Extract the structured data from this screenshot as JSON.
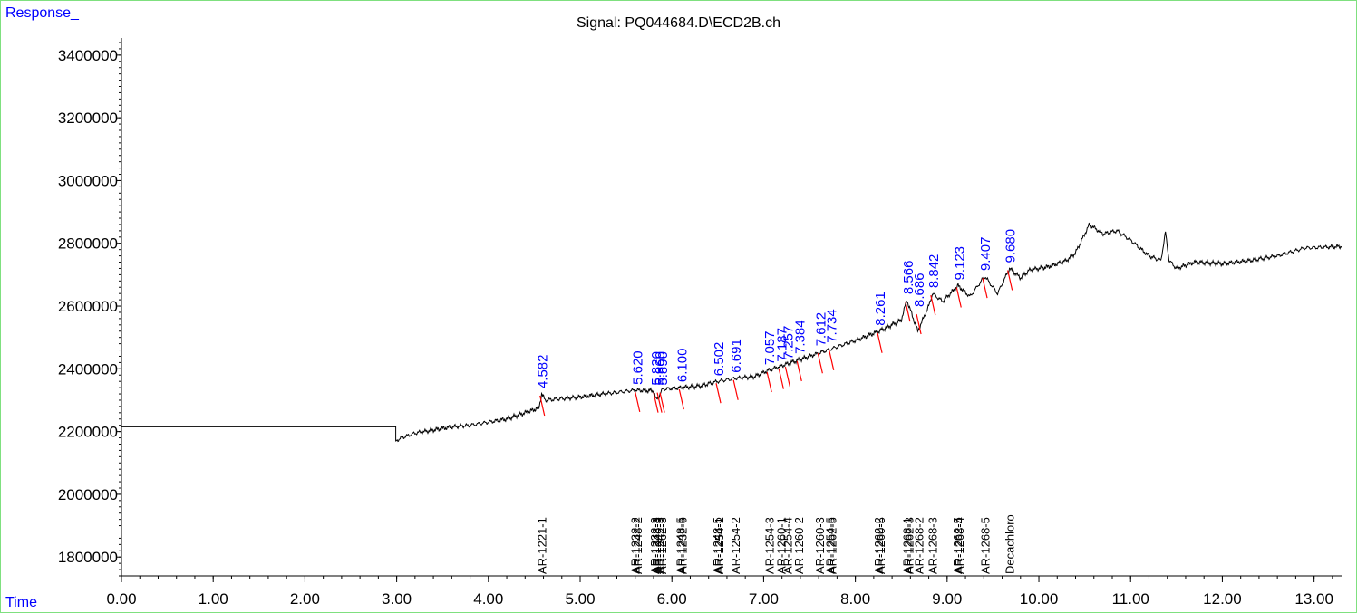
{
  "chart_data": {
    "type": "line",
    "title": "Signal: PQ044684.D\\ECD2B.ch",
    "ylabel": "Response_",
    "xlabel": "Time",
    "xlim": [
      0,
      13.3
    ],
    "ylim": [
      1740000,
      3440000
    ],
    "x_ticks": [
      "0.00",
      "1.00",
      "2.00",
      "3.00",
      "4.00",
      "5.00",
      "6.00",
      "7.00",
      "8.00",
      "9.00",
      "10.00",
      "11.00",
      "12.00",
      "13.00"
    ],
    "y_ticks": [
      "1800000",
      "2000000",
      "2200000",
      "2400000",
      "2600000",
      "2800000",
      "3000000",
      "3200000",
      "3400000"
    ],
    "series": [
      {
        "trace": [
          [
            0.0,
            2215000
          ],
          [
            2.99,
            2215000
          ],
          [
            2.99,
            2170000
          ],
          [
            3.05,
            2180000
          ],
          [
            3.2,
            2195000
          ],
          [
            3.4,
            2205000
          ],
          [
            3.6,
            2215000
          ],
          [
            3.8,
            2220000
          ],
          [
            4.0,
            2230000
          ],
          [
            4.2,
            2240000
          ],
          [
            4.4,
            2260000
          ],
          [
            4.55,
            2275000
          ],
          [
            4.58,
            2320000
          ],
          [
            4.62,
            2300000
          ],
          [
            4.8,
            2305000
          ],
          [
            5.0,
            2310000
          ],
          [
            5.2,
            2318000
          ],
          [
            5.4,
            2325000
          ],
          [
            5.6,
            2332000
          ],
          [
            5.8,
            2330000
          ],
          [
            5.83,
            2300000
          ],
          [
            5.9,
            2335000
          ],
          [
            6.1,
            2340000
          ],
          [
            6.3,
            2345000
          ],
          [
            6.5,
            2360000
          ],
          [
            6.7,
            2370000
          ],
          [
            6.9,
            2375000
          ],
          [
            7.05,
            2395000
          ],
          [
            7.2,
            2410000
          ],
          [
            7.4,
            2430000
          ],
          [
            7.6,
            2450000
          ],
          [
            7.8,
            2470000
          ],
          [
            8.0,
            2490000
          ],
          [
            8.26,
            2520000
          ],
          [
            8.5,
            2555000
          ],
          [
            8.56,
            2620000
          ],
          [
            8.68,
            2520000
          ],
          [
            8.8,
            2600000
          ],
          [
            8.84,
            2640000
          ],
          [
            8.95,
            2615000
          ],
          [
            9.12,
            2665000
          ],
          [
            9.25,
            2630000
          ],
          [
            9.41,
            2695000
          ],
          [
            9.55,
            2640000
          ],
          [
            9.68,
            2720000
          ],
          [
            9.8,
            2690000
          ],
          [
            9.9,
            2715000
          ],
          [
            10.1,
            2725000
          ],
          [
            10.3,
            2745000
          ],
          [
            10.4,
            2770000
          ],
          [
            10.55,
            2860000
          ],
          [
            10.7,
            2830000
          ],
          [
            10.85,
            2840000
          ],
          [
            11.0,
            2810000
          ],
          [
            11.2,
            2760000
          ],
          [
            11.33,
            2745000
          ],
          [
            11.38,
            2835000
          ],
          [
            11.42,
            2745000
          ],
          [
            11.5,
            2720000
          ],
          [
            11.7,
            2740000
          ],
          [
            12.0,
            2735000
          ],
          [
            12.3,
            2745000
          ],
          [
            12.6,
            2760000
          ],
          [
            12.9,
            2785000
          ],
          [
            13.3,
            2790000
          ]
        ]
      }
    ],
    "peak_labels": [
      {
        "x": 4.582,
        "y": 2320000,
        "label": "4.582"
      },
      {
        "x": 5.62,
        "y": 2332000,
        "label": "5.620"
      },
      {
        "x": 5.82,
        "y": 2330000,
        "label": "5.820"
      },
      {
        "x": 5.86,
        "y": 2330000,
        "label": "5.860"
      },
      {
        "x": 5.89,
        "y": 2330000,
        "label": "5.890"
      },
      {
        "x": 6.1,
        "y": 2340000,
        "label": "6.100"
      },
      {
        "x": 6.502,
        "y": 2360000,
        "label": "6.502"
      },
      {
        "x": 6.691,
        "y": 2370000,
        "label": "6.691"
      },
      {
        "x": 7.057,
        "y": 2395000,
        "label": "7.057"
      },
      {
        "x": 7.187,
        "y": 2405000,
        "label": "7.187"
      },
      {
        "x": 7.257,
        "y": 2412000,
        "label": "7.257"
      },
      {
        "x": 7.384,
        "y": 2430000,
        "label": "7.384"
      },
      {
        "x": 7.612,
        "y": 2455000,
        "label": "7.612"
      },
      {
        "x": 7.734,
        "y": 2465000,
        "label": "7.734"
      },
      {
        "x": 8.261,
        "y": 2520000,
        "label": "8.261"
      },
      {
        "x": 8.566,
        "y": 2620000,
        "label": "8.566"
      },
      {
        "x": 8.686,
        "y": 2580000,
        "label": "8.686"
      },
      {
        "x": 8.842,
        "y": 2640000,
        "label": "8.842"
      },
      {
        "x": 9.123,
        "y": 2665000,
        "label": "9.123"
      },
      {
        "x": 9.407,
        "y": 2695000,
        "label": "9.407"
      },
      {
        "x": 9.68,
        "y": 2720000,
        "label": "9.680"
      }
    ],
    "compound_markers": [
      {
        "x": 4.58,
        "label": "AR-1221-1"
      },
      {
        "x": 5.6,
        "label": "AR-1232-2"
      },
      {
        "x": 5.62,
        "label": "AR-1248-2"
      },
      {
        "x": 5.81,
        "label": "AR-1232-3"
      },
      {
        "x": 5.83,
        "label": "AR-1248-3"
      },
      {
        "x": 5.86,
        "label": "AR-1242-3"
      },
      {
        "x": 5.89,
        "label": "AR-1262-3"
      },
      {
        "x": 6.09,
        "label": "AR-1248-5"
      },
      {
        "x": 6.11,
        "label": "AR-1232-6"
      },
      {
        "x": 6.49,
        "label": "AR-1248-5"
      },
      {
        "x": 6.51,
        "label": "AR-1254-1"
      },
      {
        "x": 6.69,
        "label": "AR-1254-2"
      },
      {
        "x": 7.06,
        "label": "AR-1254-3"
      },
      {
        "x": 7.19,
        "label": "AR-1260-1"
      },
      {
        "x": 7.26,
        "label": "AR-1254-4"
      },
      {
        "x": 7.38,
        "label": "AR-1260-2"
      },
      {
        "x": 7.61,
        "label": "AR-1260-3"
      },
      {
        "x": 7.72,
        "label": "AR-1254-5"
      },
      {
        "x": 7.74,
        "label": "AR-1262-5"
      },
      {
        "x": 8.25,
        "label": "AR-1262-2"
      },
      {
        "x": 8.27,
        "label": "AR-1260-5"
      },
      {
        "x": 8.56,
        "label": "AR-1268-1"
      },
      {
        "x": 8.58,
        "label": "AR-1262-3"
      },
      {
        "x": 8.69,
        "label": "AR-1268-2"
      },
      {
        "x": 8.84,
        "label": "AR-1268-3"
      },
      {
        "x": 9.11,
        "label": "AR-1262-5"
      },
      {
        "x": 9.13,
        "label": "AR-1268-4"
      },
      {
        "x": 9.41,
        "label": "AR-1268-5"
      },
      {
        "x": 9.68,
        "label": "Decachloro"
      }
    ],
    "colors": {
      "trace": "#000000",
      "peak_label": "#0000ff",
      "baseline": "#ff0000",
      "frame": "#7fe07f"
    }
  }
}
